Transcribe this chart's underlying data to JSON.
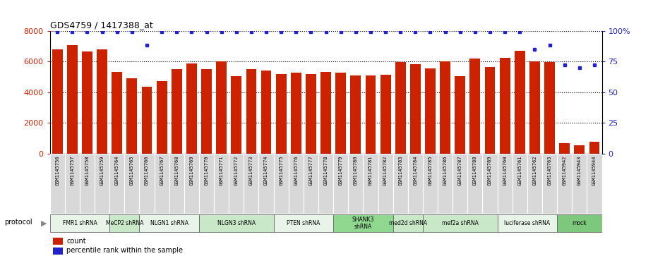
{
  "title": "GDS4759 / 1417388_at",
  "samples": [
    "GSM1145756",
    "GSM1145757",
    "GSM1145758",
    "GSM1145759",
    "GSM1145764",
    "GSM1145765",
    "GSM1145766",
    "GSM1145767",
    "GSM1145768",
    "GSM1145769",
    "GSM1145770",
    "GSM1145771",
    "GSM1145772",
    "GSM1145773",
    "GSM1145774",
    "GSM1145775",
    "GSM1145776",
    "GSM1145777",
    "GSM1145778",
    "GSM1145779",
    "GSM1145780",
    "GSM1145781",
    "GSM1145782",
    "GSM1145783",
    "GSM1145784",
    "GSM1145785",
    "GSM1145786",
    "GSM1145787",
    "GSM1145788",
    "GSM1145789",
    "GSM1145760",
    "GSM1145761",
    "GSM1145762",
    "GSM1145763",
    "GSM1145942",
    "GSM1145943",
    "GSM1145944"
  ],
  "counts": [
    6800,
    7050,
    6650,
    6800,
    5300,
    4900,
    4350,
    4700,
    5500,
    5850,
    5500,
    6000,
    5050,
    5500,
    5400,
    5200,
    5250,
    5200,
    5300,
    5250,
    5100,
    5100,
    5150,
    5950,
    5800,
    5550,
    6000,
    5050,
    6200,
    5650,
    6250,
    6700,
    6000,
    5950,
    700,
    550,
    750
  ],
  "percentiles": [
    99,
    99,
    99,
    99,
    99,
    99,
    88,
    99,
    99,
    99,
    99,
    99,
    99,
    99,
    99,
    99,
    99,
    99,
    99,
    99,
    99,
    99,
    99,
    99,
    99,
    99,
    99,
    99,
    99,
    99,
    99,
    99,
    85,
    88,
    72,
    70,
    72
  ],
  "protocols": [
    {
      "label": "FMR1 shRNA",
      "start": 0,
      "end": 4,
      "color": "#e8f4e8"
    },
    {
      "label": "MeCP2 shRNA",
      "start": 4,
      "end": 6,
      "color": "#c8e8c8"
    },
    {
      "label": "NLGN1 shRNA",
      "start": 6,
      "end": 10,
      "color": "#e8f4e8"
    },
    {
      "label": "NLGN3 shRNA",
      "start": 10,
      "end": 15,
      "color": "#c8e8c8"
    },
    {
      "label": "PTEN shRNA",
      "start": 15,
      "end": 19,
      "color": "#e8f4e8"
    },
    {
      "label": "SHANK3\nshRNA",
      "start": 19,
      "end": 23,
      "color": "#90d890"
    },
    {
      "label": "med2d shRNA",
      "start": 23,
      "end": 25,
      "color": "#c8e8c8"
    },
    {
      "label": "mef2a shRNA",
      "start": 25,
      "end": 30,
      "color": "#c8e8c8"
    },
    {
      "label": "luciferase shRNA",
      "start": 30,
      "end": 34,
      "color": "#e8f4e8"
    },
    {
      "label": "mock",
      "start": 34,
      "end": 37,
      "color": "#7ec87e"
    }
  ],
  "bar_color": "#cc2200",
  "dot_color": "#2222cc",
  "ylim_left": [
    0,
    8000
  ],
  "ylim_right": [
    0,
    100
  ],
  "yticks_left": [
    0,
    2000,
    4000,
    6000,
    8000
  ],
  "yticks_right": [
    0,
    25,
    50,
    75,
    100
  ],
  "grid_values": [
    2000,
    4000,
    6000,
    8000
  ]
}
